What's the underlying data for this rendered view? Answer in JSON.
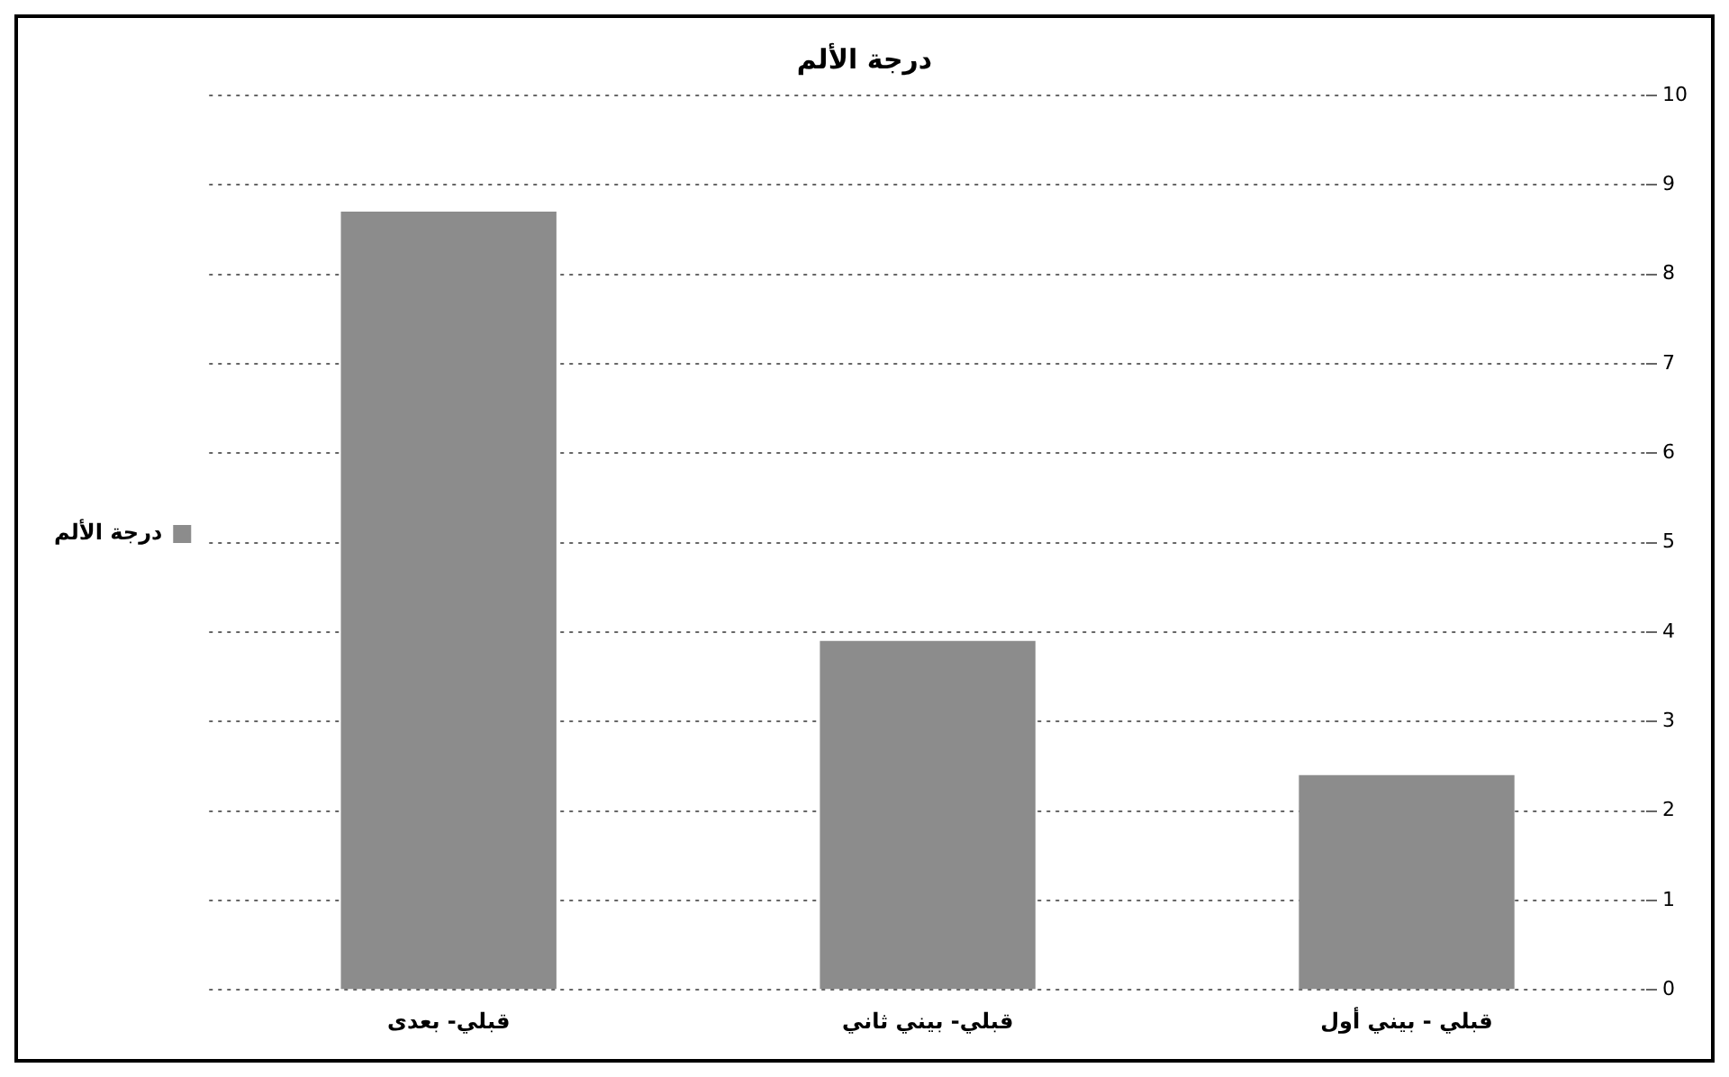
{
  "chart_data": {
    "type": "bar",
    "title": "درجة الألم",
    "categories": [
      "قبلي- بعدى",
      "قبلي- بيني ثاني",
      "قبلي - بيني أول"
    ],
    "series": [
      {
        "name": "درجة الألم",
        "color": "#8c8c8c",
        "values": [
          8.7,
          3.9,
          2.4
        ]
      }
    ],
    "ylim": [
      0,
      10
    ],
    "yticks": [
      0,
      1,
      2,
      3,
      4,
      5,
      6,
      7,
      8,
      9,
      10
    ],
    "grid": "y",
    "legend": "left"
  }
}
